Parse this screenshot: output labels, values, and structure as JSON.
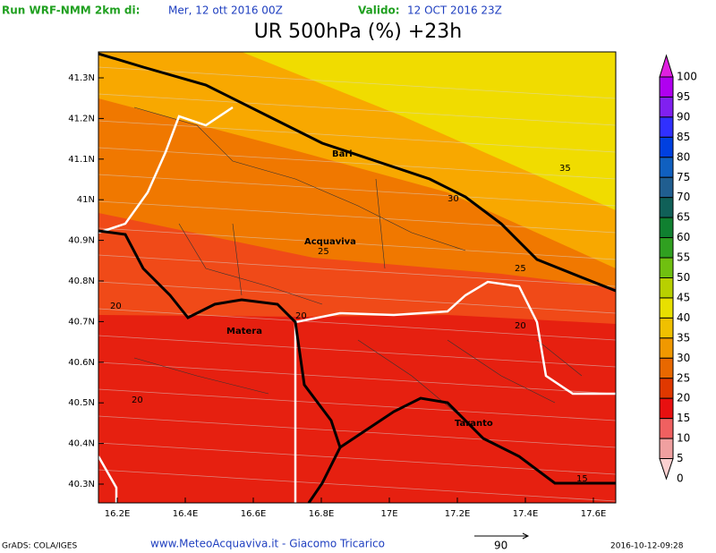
{
  "header": {
    "run_label": "Run WRF-NMM 2km di:",
    "run_date": "Mer, 12 ott 2016 00Z",
    "valid_label": "Valido:",
    "valid_date": "12 OCT 2016 23Z"
  },
  "title": "UR 500hPa (%) +23h",
  "map": {
    "lat_labels": [
      "41.3N",
      "41.2N",
      "41.1N",
      "41N",
      "40.9N",
      "40.8N",
      "40.7N",
      "40.6N",
      "40.5N",
      "40.4N",
      "40.3N"
    ],
    "lon_labels": [
      "16.2E",
      "16.4E",
      "16.6E",
      "16.8E",
      "17E",
      "17.2E",
      "17.4E",
      "17.6E"
    ],
    "cities": [
      "Bari",
      "Acquaviva",
      "Matera",
      "Taranto"
    ],
    "contour_labels": [
      "35",
      "30",
      "25",
      "25",
      "20",
      "20",
      "20",
      "20",
      "15"
    ]
  },
  "legend": {
    "levels": [
      100,
      95,
      90,
      85,
      80,
      75,
      70,
      65,
      60,
      55,
      50,
      45,
      40,
      35,
      30,
      25,
      20,
      15,
      10,
      5,
      0
    ],
    "colors": [
      "#e020e0",
      "#b000f0",
      "#8020f0",
      "#3030ff",
      "#0040e0",
      "#1060c0",
      "#205e90",
      "#106058",
      "#108030",
      "#30a020",
      "#70c010",
      "#b8d000",
      "#e8e000",
      "#f0c000",
      "#f09800",
      "#e86800",
      "#e03800",
      "#e81010",
      "#f06060",
      "#f0a0a0",
      "#fbd0d0"
    ]
  },
  "footer": {
    "credit": "GrADS: COLA/IGES",
    "site": "www.MeteoAcquaviva.it - Giacomo Tricarico",
    "vector_scale": "90",
    "timestamp": "2016-10-12-09:28"
  }
}
